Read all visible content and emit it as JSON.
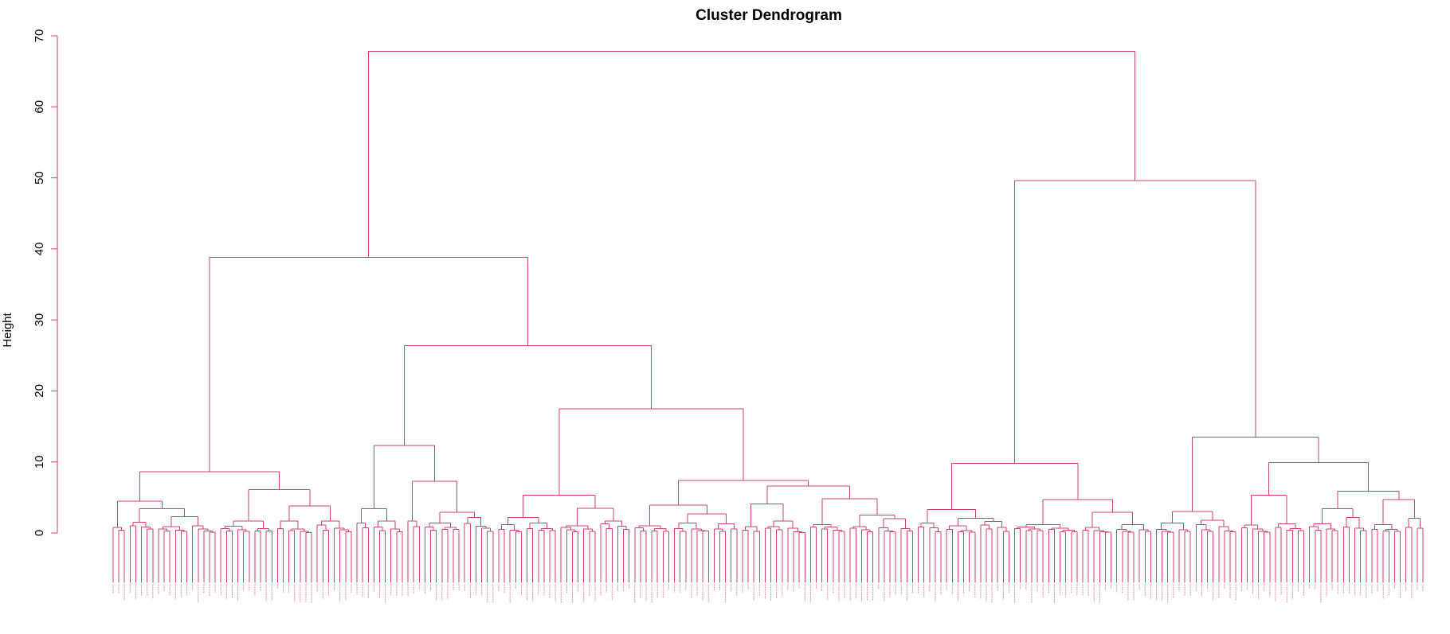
{
  "chart_data": {
    "type": "dendrogram",
    "title": "Cluster Dendrogram",
    "ylabel": "Height",
    "xlabel": "",
    "ylim": [
      0,
      70
    ],
    "yticks": [
      0,
      10,
      20,
      30,
      40,
      50,
      60,
      70
    ],
    "leaf_count_approx": 400,
    "color": "#c8416a",
    "label_color": "#d98aa5",
    "tree": {
      "height": 67.8,
      "children": [
        {
          "height": 38.8,
          "children": [
            {
              "height": 8.6,
              "children": [
                {
                  "height": 4.5,
                  "children": [
                    {
                      "height": 0.8,
                      "n": 3
                    },
                    {
                      "height": 3.4,
                      "children": [
                        {
                          "height": 1.5,
                          "n": 5
                        },
                        {
                          "height": 2.3,
                          "children": [
                            {
                              "height": 0.9,
                              "n": 6
                            },
                            {
                              "height": 1.0,
                              "n": 5
                            }
                          ]
                        }
                      ]
                    }
                  ]
                },
                {
                  "height": 6.1,
                  "children": [
                    {
                      "height": 1.7,
                      "n": 10
                    },
                    {
                      "height": 3.8,
                      "children": [
                        {
                          "height": 1.7,
                          "n": 7
                        },
                        {
                          "height": 1.7,
                          "n": 7
                        }
                      ]
                    }
                  ]
                }
              ]
            },
            {
              "height": 26.4,
              "children": [
                {
                  "height": 12.3,
                  "children": [
                    {
                      "height": 3.4,
                      "children": [
                        {
                          "height": 1.4,
                          "n": 3
                        },
                        {
                          "height": 1.7,
                          "n": 6
                        }
                      ]
                    },
                    {
                      "height": 7.3,
                      "children": [
                        {
                          "height": 1.7,
                          "n": 3
                        },
                        {
                          "height": 2.9,
                          "children": [
                            {
                              "height": 1.4,
                              "n": 7
                            },
                            {
                              "height": 2.2,
                              "n": 6
                            }
                          ]
                        }
                      ]
                    }
                  ]
                },
                {
                  "height": 17.5,
                  "children": [
                    {
                      "height": 5.3,
                      "children": [
                        {
                          "height": 2.2,
                          "children": [
                            {
                              "height": 1.2,
                              "n": 5
                            },
                            {
                              "height": 1.4,
                              "n": 6
                            }
                          ]
                        },
                        {
                          "height": 3.5,
                          "children": [
                            {
                              "height": 1.0,
                              "n": 7
                            },
                            {
                              "height": 1.7,
                              "n": 6
                            }
                          ]
                        }
                      ]
                    },
                    {
                      "height": 7.4,
                      "children": [
                        {
                          "height": 3.9,
                          "children": [
                            {
                              "height": 1.0,
                              "n": 7
                            },
                            {
                              "height": 2.7,
                              "children": [
                                {
                                  "height": 1.4,
                                  "n": 7
                                },
                                {
                                  "height": 1.3,
                                  "n": 5
                                }
                              ]
                            }
                          ]
                        },
                        {
                          "height": 6.6,
                          "children": [
                            {
                              "height": 4.1,
                              "children": [
                                {
                                  "height": 0.9,
                                  "n": 4
                                },
                                {
                                  "height": 1.7,
                                  "n": 8
                                }
                              ]
                            },
                            {
                              "height": 4.8,
                              "children": [
                                {
                                  "height": 1.2,
                                  "n": 7
                                },
                                {
                                  "height": 2.5,
                                  "children": [
                                    {
                                      "height": 0.9,
                                      "n": 5
                                    },
                                    {
                                      "height": 2.0,
                                      "n": 7
                                    }
                                  ]
                                }
                              ]
                            }
                          ]
                        }
                      ]
                    }
                  ]
                }
              ]
            }
          ]
        },
        {
          "height": 49.6,
          "children": [
            {
              "height": 9.8,
              "children": [
                {
                  "height": 3.3,
                  "children": [
                    {
                      "height": 1.4,
                      "n": 5
                    },
                    {
                      "height": 2.1,
                      "children": [
                        {
                          "height": 1.0,
                          "n": 6
                        },
                        {
                          "height": 1.6,
                          "n": 6
                        }
                      ]
                    }
                  ]
                },
                {
                  "height": 4.7,
                  "children": [
                    {
                      "height": 1.2,
                      "n": 12
                    },
                    {
                      "height": 2.9,
                      "children": [
                        {
                          "height": 0.8,
                          "n": 6
                        },
                        {
                          "height": 1.2,
                          "n": 7
                        }
                      ]
                    }
                  ]
                }
              ]
            },
            {
              "height": 13.5,
              "children": [
                {
                  "height": 3.0,
                  "children": [
                    {
                      "height": 1.4,
                      "n": 7
                    },
                    {
                      "height": 1.8,
                      "n": 8
                    }
                  ]
                },
                {
                  "height": 9.9,
                  "children": [
                    {
                      "height": 5.3,
                      "children": [
                        {
                          "height": 1.1,
                          "n": 6
                        },
                        {
                          "height": 1.3,
                          "n": 6
                        }
                      ]
                    },
                    {
                      "height": 5.9,
                      "children": [
                        {
                          "height": 3.4,
                          "children": [
                            {
                              "height": 1.3,
                              "n": 6
                            },
                            {
                              "height": 2.2,
                              "n": 5
                            }
                          ]
                        },
                        {
                          "height": 4.7,
                          "children": [
                            {
                              "height": 1.2,
                              "n": 6
                            },
                            {
                              "height": 2.1,
                              "n": 4
                            }
                          ]
                        }
                      ]
                    }
                  ]
                }
              ]
            }
          ]
        }
      ]
    }
  }
}
